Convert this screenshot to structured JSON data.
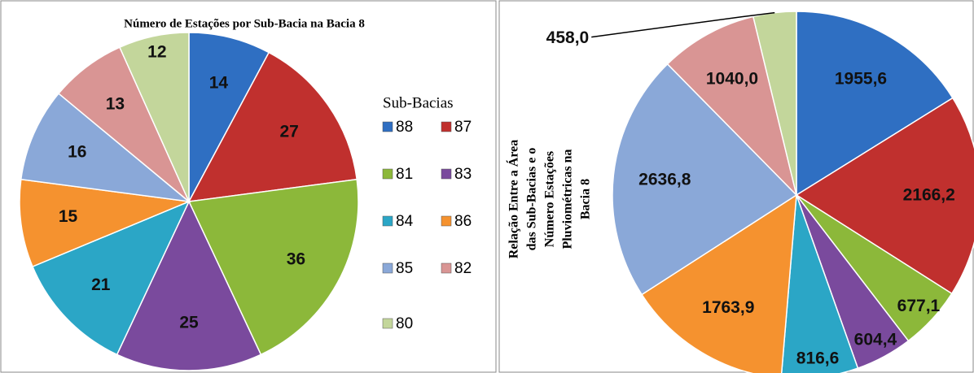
{
  "chart_data": [
    {
      "type": "pie",
      "title": "Número de Estações por Sub-Bacia na Bacia 8",
      "legend_title": "Sub-Bacias",
      "categories": [
        "88",
        "87",
        "81",
        "83",
        "84",
        "86",
        "85",
        "82",
        "80"
      ],
      "values": [
        14,
        27,
        36,
        25,
        21,
        15,
        16,
        13,
        12
      ],
      "colors": [
        "#2f6fc2",
        "#c0302e",
        "#8cb83a",
        "#7a4a9d",
        "#2ba6c6",
        "#f5922f",
        "#8aa8d8",
        "#d99594",
        "#c3d69b"
      ],
      "legend": "right"
    },
    {
      "type": "pie",
      "title": [
        "Relação Entre a Área",
        "das Sub-Bacias e o",
        "Número Estações",
        "Pluviométricas na",
        "Bacia 8"
      ],
      "values": [
        1955.6,
        2166.2,
        677.1,
        604.4,
        816.6,
        1763.9,
        2636.8,
        1040.0,
        458.0
      ],
      "value_labels": [
        "1955,6",
        "2166,2",
        "677,1",
        "604,4",
        "816,6",
        "1763,9",
        "2636,8",
        "1040,0",
        "458,0"
      ],
      "colors": [
        "#2f6fc2",
        "#c0302e",
        "#8cb83a",
        "#7a4a9d",
        "#2ba6c6",
        "#f5922f",
        "#8aa8d8",
        "#d99594",
        "#c3d69b"
      ]
    }
  ]
}
